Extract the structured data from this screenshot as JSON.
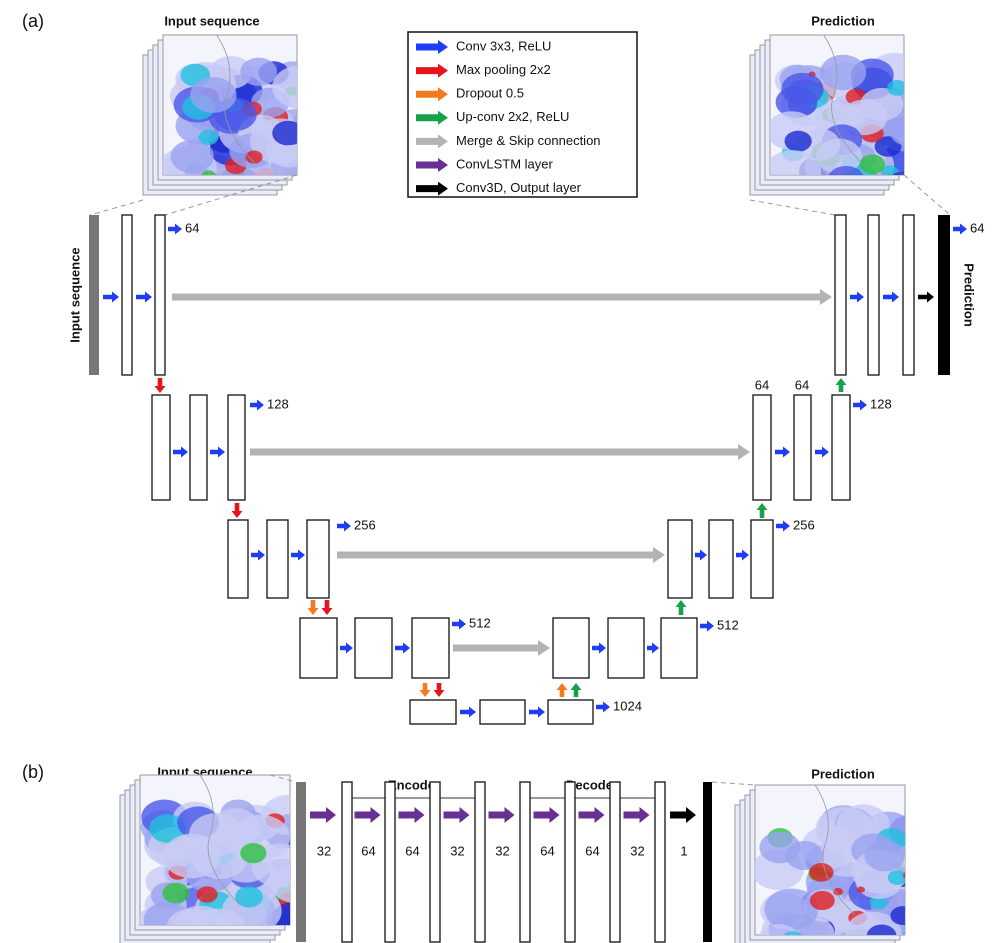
{
  "panel_a": {
    "label": "(a)",
    "input_title": "Input sequence",
    "prediction_title": "Prediction",
    "input_side_label": "Input sequence",
    "prediction_side_label": "Prediction",
    "legend": [
      "Conv 3x3, ReLU",
      "Max pooling 2x2",
      "Dropout 0.5",
      "Up-conv 2x2, ReLU",
      "Merge & Skip connection",
      "ConvLSTM layer",
      "Conv3D, Output layer"
    ],
    "channel_labels": [
      64,
      128,
      256,
      512,
      1024,
      512,
      256,
      128,
      64,
      64,
      64
    ]
  },
  "panel_b": {
    "label": "(b)",
    "input_title": "Input sequence",
    "prediction_title": "Prediction",
    "encoder": "Encoder",
    "decoder": "Decoder",
    "channel_labels": [
      32,
      64,
      64,
      32,
      32,
      64,
      64,
      32,
      1
    ]
  }
}
